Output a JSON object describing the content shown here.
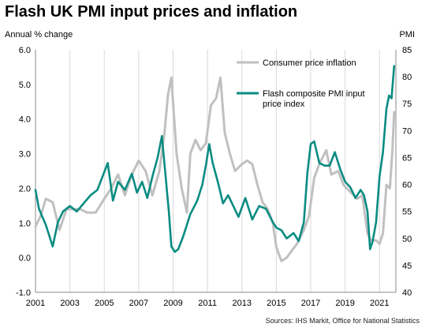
{
  "title": "Flash UK PMI input prices and inflation",
  "source": "Sources: IHS Markit, Office for National Statistics",
  "colors": {
    "cpi": "#c0c0c0",
    "pmi": "#0a8c82",
    "grid": "#d9d9d9",
    "axis": "#888888"
  },
  "chart_data": {
    "type": "line",
    "title": "Flash UK PMI input prices and inflation",
    "ylabel": "Annual % change",
    "ylabel_right": "PMI",
    "xlim": [
      2001,
      2021.95
    ],
    "ylim": [
      -1.0,
      6.0
    ],
    "ylim_right": [
      40,
      85
    ],
    "x_ticks": [
      2001,
      2003,
      2005,
      2007,
      2009,
      2011,
      2013,
      2015,
      2017,
      2019,
      2021
    ],
    "y_ticks": [
      "-1.0",
      "0.0",
      "1.0",
      "2.0",
      "3.0",
      "4.0",
      "5.0",
      "6.0"
    ],
    "y_ticks_right": [
      40,
      45,
      50,
      55,
      60,
      65,
      70,
      75,
      80,
      85
    ],
    "grid": "vertical",
    "legend_position": "top-right",
    "series": [
      {
        "name": "Consumer price inflation",
        "axis": "left",
        "x": [
          2001.0,
          2001.3,
          2001.6,
          2002.0,
          2002.4,
          2002.8,
          2003.2,
          2003.6,
          2004.0,
          2004.5,
          2005.0,
          2005.4,
          2005.8,
          2006.2,
          2006.6,
          2007.0,
          2007.4,
          2007.8,
          2008.2,
          2008.5,
          2008.7,
          2008.9,
          2009.2,
          2009.5,
          2009.8,
          2010.0,
          2010.3,
          2010.6,
          2010.9,
          2011.2,
          2011.5,
          2011.75,
          2012.0,
          2012.3,
          2012.6,
          2013.0,
          2013.3,
          2013.6,
          2013.9,
          2014.2,
          2014.5,
          2014.8,
          2015.0,
          2015.3,
          2015.6,
          2015.9,
          2016.2,
          2016.6,
          2016.9,
          2017.2,
          2017.5,
          2017.9,
          2018.2,
          2018.6,
          2018.9,
          2019.3,
          2019.7,
          2020.0,
          2020.3,
          2020.5,
          2020.8,
          2021.0,
          2021.2,
          2021.4,
          2021.6,
          2021.75,
          2021.85
        ],
        "values": [
          0.9,
          1.2,
          1.7,
          1.6,
          0.8,
          1.4,
          1.4,
          1.4,
          1.3,
          1.3,
          1.7,
          2.0,
          2.4,
          1.8,
          2.4,
          2.8,
          2.5,
          1.8,
          2.5,
          3.6,
          4.7,
          5.2,
          3.0,
          2.0,
          1.3,
          3.0,
          3.4,
          3.1,
          3.3,
          4.4,
          4.6,
          5.2,
          3.6,
          3.0,
          2.5,
          2.7,
          2.8,
          2.7,
          2.1,
          1.6,
          1.4,
          1.0,
          0.3,
          -0.1,
          0.0,
          0.2,
          0.4,
          0.8,
          1.2,
          2.3,
          2.7,
          3.1,
          2.4,
          2.5,
          2.1,
          1.9,
          1.7,
          1.8,
          0.7,
          0.5,
          0.5,
          0.4,
          0.7,
          2.1,
          2.0,
          3.1,
          4.2
        ]
      },
      {
        "name": "Flash composite PMI input price index",
        "axis": "right",
        "x": [
          2001.0,
          2001.2,
          2001.4,
          2001.6,
          2001.8,
          2002.0,
          2002.3,
          2002.6,
          2003.0,
          2003.4,
          2003.8,
          2004.2,
          2004.6,
          2004.9,
          2005.2,
          2005.5,
          2005.8,
          2006.2,
          2006.6,
          2006.9,
          2007.2,
          2007.5,
          2007.8,
          2008.1,
          2008.35,
          2008.55,
          2008.75,
          2008.9,
          2009.1,
          2009.3,
          2009.6,
          2010.0,
          2010.4,
          2010.7,
          2010.9,
          2011.1,
          2011.3,
          2011.6,
          2011.9,
          2012.2,
          2012.5,
          2012.8,
          2013.2,
          2013.6,
          2014.0,
          2014.4,
          2014.8,
          2015.0,
          2015.3,
          2015.6,
          2016.0,
          2016.3,
          2016.6,
          2016.8,
          2017.0,
          2017.2,
          2017.5,
          2017.8,
          2018.1,
          2018.4,
          2018.7,
          2019.0,
          2019.3,
          2019.6,
          2019.9,
          2020.1,
          2020.3,
          2020.45,
          2020.6,
          2020.8,
          2021.0,
          2021.2,
          2021.4,
          2021.55,
          2021.7,
          2021.85
        ],
        "values": [
          59.0,
          55.5,
          54.0,
          52.5,
          50.5,
          48.5,
          53.0,
          55.0,
          56.0,
          55.0,
          56.5,
          58.0,
          59.0,
          61.5,
          64.0,
          57.0,
          60.5,
          59.0,
          62.0,
          58.5,
          60.5,
          57.5,
          61.5,
          65.0,
          69.0,
          62.0,
          55.0,
          48.5,
          47.5,
          48.0,
          50.5,
          54.5,
          57.0,
          60.0,
          63.5,
          67.5,
          64.0,
          60.5,
          56.5,
          58.0,
          56.0,
          54.0,
          57.5,
          53.5,
          56.0,
          55.5,
          53.0,
          52.0,
          51.5,
          50.0,
          51.0,
          49.5,
          53.0,
          62.0,
          67.5,
          68.0,
          64.0,
          63.5,
          63.5,
          66.0,
          63.0,
          60.5,
          59.5,
          57.5,
          59.0,
          58.0,
          55.0,
          48.0,
          49.5,
          53.0,
          61.5,
          66.0,
          74.0,
          76.5,
          76.0,
          82.0
        ]
      }
    ]
  }
}
